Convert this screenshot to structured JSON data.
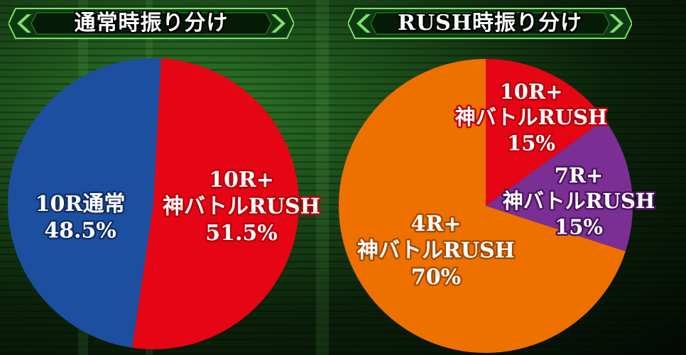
{
  "chart_data": [
    {
      "type": "pie",
      "title": "通常時振り分け",
      "slices": [
        {
          "lines": [
            "10R+",
            "神バトルRUSH",
            "51.5%"
          ],
          "value": 51.5,
          "color": "#e60514",
          "text_color": "#ffffff",
          "stroke": "#b8000c"
        },
        {
          "lines": [
            "10R通常",
            "48.5%"
          ],
          "value": 48.5,
          "color": "#1d4fa0",
          "text_color": "#ffffff",
          "stroke": "#0f2f66"
        }
      ]
    },
    {
      "type": "pie",
      "title": "RUSH時振り分け",
      "slices": [
        {
          "lines": [
            "10R+",
            "神バトルRUSH",
            "15%"
          ],
          "value": 15,
          "color": "#e60514",
          "text_color": "#ffffff",
          "stroke": "#b8000c"
        },
        {
          "lines": [
            "7R+",
            "神バトルRUSH",
            "15%"
          ],
          "value": 15,
          "color": "#7b2f94",
          "text_color": "#ffffff",
          "stroke": "#4a1560"
        },
        {
          "lines": [
            "4R+",
            "神バトルRUSH",
            "70%"
          ],
          "value": 70,
          "color": "#ee7100",
          "text_color": "#ffffff",
          "stroke": "#a64a00"
        }
      ]
    }
  ]
}
